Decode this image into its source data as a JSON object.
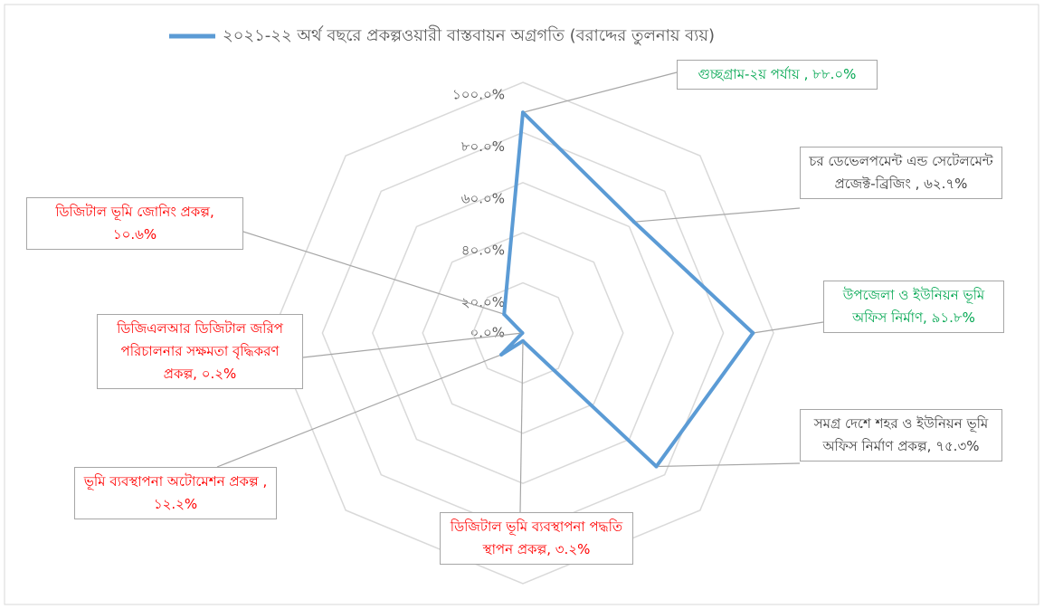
{
  "chart_data": {
    "type": "radar",
    "categories": [
      "গুচ্ছগ্রাম-২য় পর্যায় ,",
      "চর ডেভেলপমেন্ট এন্ড সেটেলমেন্ট প্রজেক্ট-ব্রিজিং ,",
      "উপজেলা ও ইউনিয়ন ভূমি অফিস নির্মাণ,",
      "সমগ্র দেশে শহর ও ইউনিয়ন ভূমি অফিস নির্মাণ প্রকল্প,",
      "ডিজিটাল ভূমি ব্যবস্থাপনা পদ্ধতি স্থাপন প্রকল্প,",
      "ভূমি ব্যবস্থাপনা অটোমেশন প্রকল্প ,",
      "ডিজিএলআর ডিজিটাল জরিপ পরিচালনার সক্ষমতা বৃদ্ধিকরণ প্রকল্প,",
      "ডিজিটাল ভূমি জোনিং প্রকল্প,"
    ],
    "series": [
      {
        "name": "২০২১-২২ অর্থ বছরে প্রকল্পওয়ারী বাস্তবায়ন অগ্রগতি (বরাদ্দের তুলনায় ব্যয়)",
        "color": "#5b9bd5",
        "values": [
          88.0,
          62.7,
          91.8,
          75.3,
          3.2,
          12.2,
          0.2,
          10.6
        ],
        "value_labels": [
          "৮৮.০%",
          "৬২.৭%",
          "৯১.৮%",
          "৭৫.৩%",
          "৩.২%",
          "১২.২%",
          "০.২%",
          "১০.৬%"
        ],
        "value_label_colors": [
          "#00a650",
          "#404040",
          "#00a650",
          "#404040",
          "#ff0000",
          "#ff0000",
          "#ff0000",
          "#ff0000"
        ]
      }
    ],
    "ylim": [
      0,
      100
    ],
    "yticks": [
      {
        "value": 0,
        "label": "০.০%"
      },
      {
        "value": 20,
        "label": "২০.০%"
      },
      {
        "value": 40,
        "label": "৪০.০%"
      },
      {
        "value": 60,
        "label": "৬০.০%"
      },
      {
        "value": 80,
        "label": "৮০.০%"
      },
      {
        "value": 100,
        "label": "১০০.০%"
      }
    ],
    "grid": true,
    "legend": "top"
  }
}
